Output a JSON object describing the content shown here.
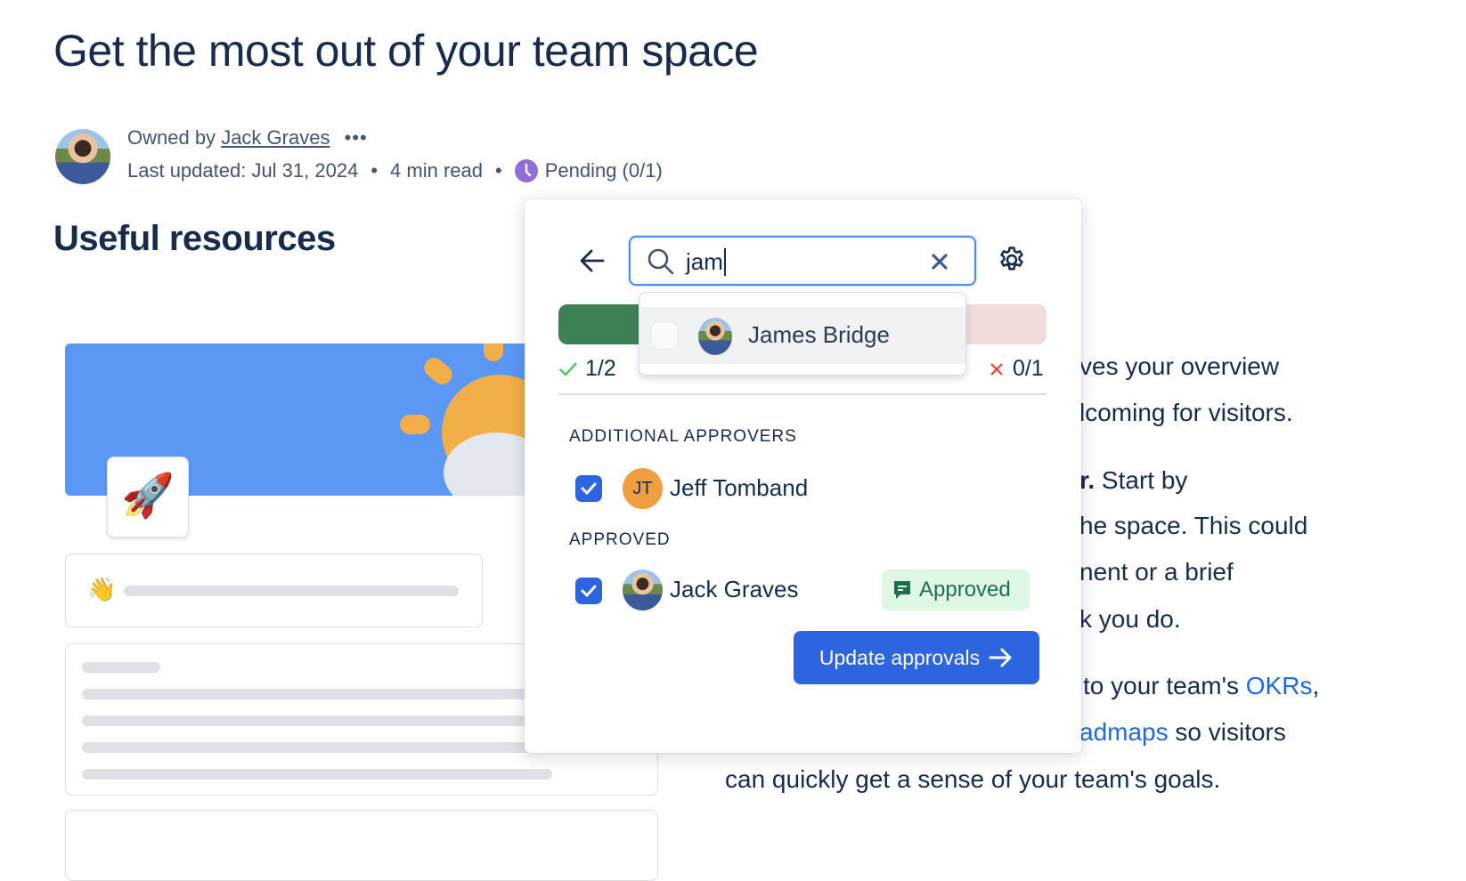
{
  "page": {
    "title": "Get the most out of your team space",
    "owner_prefix": "Owned by",
    "owner_name": "Jack Graves",
    "more_label": "•••",
    "last_updated": "Last updated: Jul 31, 2024",
    "read_time": "4 min read",
    "separator": "•",
    "status": "Pending (0/1)",
    "section_heading": "Useful resources"
  },
  "body_fragments": [
    "ves your overview",
    "lcoming for visitors.",
    "r.",
    " Start by",
    "he space. This could",
    "nent or a brief",
    "k you do.",
    "to your team's ",
    "OKRs",
    ",",
    "admaps",
    " so visitors",
    "can quickly get a sense of your team's goals."
  ],
  "popup": {
    "search_value": "jam",
    "suggestion": "James Bridge",
    "approved_count": "1/2",
    "rejected_count": "0/1",
    "additional_heading": "ADDITIONAL APPROVERS",
    "additional": [
      {
        "initials": "JT",
        "name": "Jeff Tomband",
        "checked": true
      }
    ],
    "approved_heading": "APPROVED",
    "approved": [
      {
        "name": "Jack Graves",
        "checked": true,
        "badge": "Approved"
      }
    ],
    "update_button": "Update approvals"
  },
  "colors": {
    "accent": "#2d64e0",
    "approved_bar": "#3f8157",
    "rejected_bar": "#f1dcdc",
    "pending": "#8f6fd6",
    "avatar_jt": "#f09e40",
    "badge_bg": "#dff8e6",
    "badge_text": "#216e4e"
  }
}
